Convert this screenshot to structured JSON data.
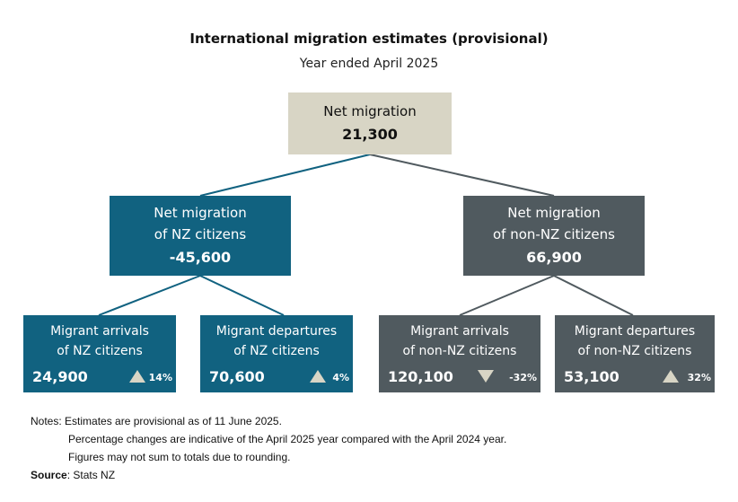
{
  "title": "International migration estimates (provisional)",
  "subtitle": "Year ended April 2025",
  "top": {
    "label": "Net migration",
    "value": "21,300"
  },
  "nz": {
    "line1": "Net migration",
    "line2": "of NZ citizens",
    "value": "-45,600"
  },
  "non_nz": {
    "line1": "Net migration",
    "line2": "of non-NZ citizens",
    "value": "66,900"
  },
  "leaves": [
    {
      "line1": "Migrant arrivals",
      "line2": "of NZ citizens",
      "value": "24,900",
      "change": "14%",
      "direction": "up"
    },
    {
      "line1": "Migrant departures",
      "line2": "of NZ citizens",
      "value": "70,600",
      "change": "4%",
      "direction": "up"
    },
    {
      "line1": "Migrant arrivals",
      "line2": "of non-NZ citizens",
      "value": "120,100",
      "change": "-32%",
      "direction": "down"
    },
    {
      "line1": "Migrant departures",
      "line2": "of non-NZ citizens",
      "value": "53,100",
      "change": "32%",
      "direction": "up"
    }
  ],
  "notes": {
    "line1": "Notes: Estimates are provisional as of 11 June 2025.",
    "line2": "Percentage changes are indicative of the April 2025 year compared with the April 2024 year.",
    "line3": "Figures may not sum to totals due to rounding.",
    "source_label": "Source",
    "source_value": ": Stats NZ"
  },
  "colors": {
    "teal": "#116280",
    "grey": "#505a5f",
    "beige": "#d8d5c5"
  }
}
